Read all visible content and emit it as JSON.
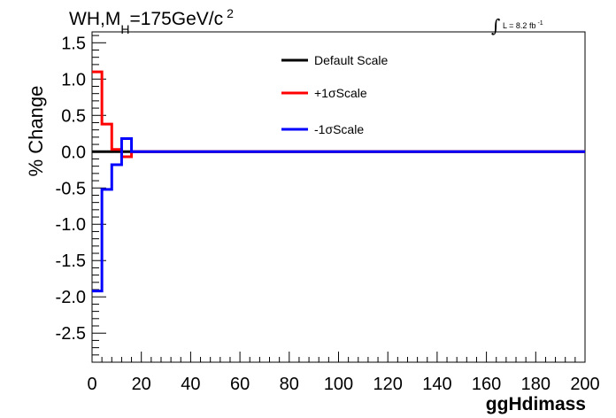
{
  "chart_data": {
    "type": "line",
    "title": {
      "prefix": "WH,M",
      "subscript": "H",
      "middle": "=175GeV/c",
      "superscript": "2"
    },
    "annotation": {
      "integral": "∫",
      "text": "L = 8.2 fb",
      "superscript": "-1"
    },
    "xlabel": "ggHdimass",
    "ylabel": "% Change",
    "xlim": [
      0,
      200
    ],
    "ylim": [
      -2.9,
      1.65
    ],
    "x_ticks": [
      0,
      20,
      40,
      60,
      80,
      100,
      120,
      140,
      160,
      180,
      200
    ],
    "x_tick_labels": [
      "0",
      "20",
      "40",
      "60",
      "80",
      "100",
      "120",
      "140",
      "160",
      "180",
      "200"
    ],
    "y_ticks": [
      -2.5,
      -2.0,
      -1.5,
      -1.0,
      -0.5,
      0.0,
      0.5,
      1.0,
      1.5
    ],
    "y_tick_labels": [
      "-2.5",
      "-2.0",
      "-1.5",
      "-1.0",
      "-0.5",
      "0.0",
      "0.5",
      "1.0",
      "1.5"
    ],
    "bin_edges": [
      0,
      4,
      8,
      12,
      16,
      20,
      200
    ],
    "series": [
      {
        "name": "Default Scale",
        "color": "#000000",
        "values": [
          0.0,
          0.0,
          0.0,
          0.0,
          0.0,
          0.0
        ]
      },
      {
        "name": "+1σScale",
        "color": "#ff0000",
        "values": [
          1.1,
          0.38,
          0.03,
          -0.07,
          0.0,
          0.0
        ]
      },
      {
        "name": "-1σScale",
        "color": "#0000ff",
        "values": [
          -1.92,
          -0.52,
          -0.18,
          0.18,
          0.0,
          0.0
        ]
      }
    ],
    "legend_position": "top-center",
    "grid": false
  }
}
